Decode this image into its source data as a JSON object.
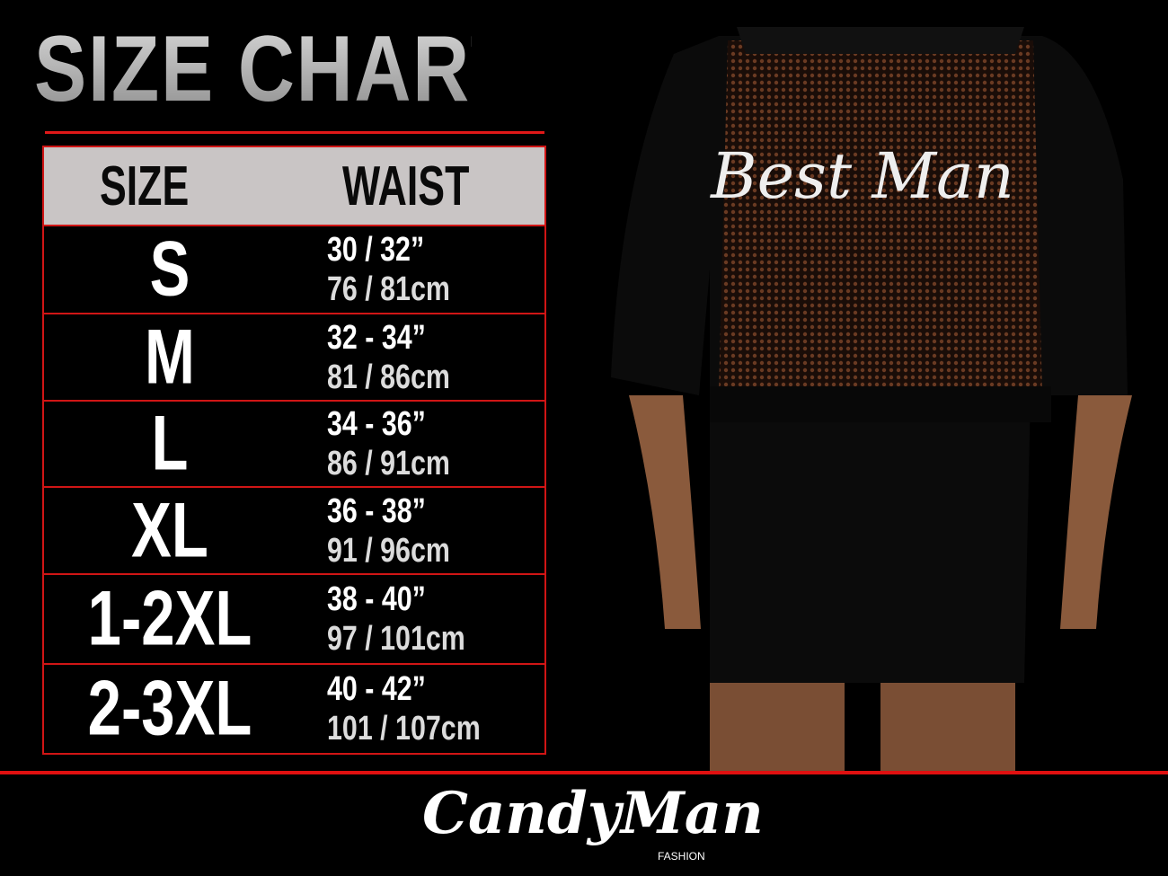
{
  "title": "SIZE CHART",
  "table": {
    "headers": {
      "size": "SIZE",
      "waist": "WAIST"
    },
    "rows": [
      {
        "size": "S",
        "waist_in": "30 / 32”",
        "waist_cm": "76 / 81cm"
      },
      {
        "size": "M",
        "waist_in": "32 - 34”",
        "waist_cm": "81 / 86cm"
      },
      {
        "size": "L",
        "waist_in": "34 - 36”",
        "waist_cm": "86 / 91cm"
      },
      {
        "size": "XL",
        "waist_in": "36 - 38”",
        "waist_cm": "91 / 96cm"
      },
      {
        "size": "1-2XL",
        "waist_in": "38 - 40”",
        "waist_cm": "97 / 101cm"
      },
      {
        "size": "2-3XL",
        "waist_in": "40 - 42”",
        "waist_cm": "101 / 107cm"
      }
    ]
  },
  "product": {
    "print_text": "Best Man"
  },
  "brand": {
    "name": "CandyMan",
    "sub": "FASHION"
  },
  "colors": {
    "accent": "#e01010",
    "header_bg": "#c9c5c5",
    "background": "#000000"
  }
}
